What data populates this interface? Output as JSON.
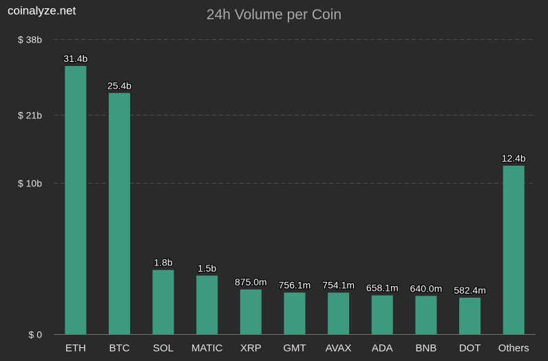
{
  "brand": "coinalyze.net",
  "chart_data": {
    "type": "bar",
    "title": "24h Volume per Coin",
    "xlabel": "",
    "ylabel": "",
    "categories": [
      "ETH",
      "BTC",
      "SOL",
      "MATIC",
      "XRP",
      "GMT",
      "AVAX",
      "ADA",
      "BNB",
      "DOT",
      "Others"
    ],
    "values": [
      31.4,
      25.4,
      1.8,
      1.5,
      0.875,
      0.7561,
      0.7541,
      0.6581,
      0.64,
      0.5824,
      12.4
    ],
    "value_labels": [
      "31.4b",
      "25.4b",
      "1.8b",
      "1.5b",
      "875.0m",
      "756.1m",
      "754.1m",
      "658.1m",
      "640.0m",
      "582.4m",
      "12.4b"
    ],
    "y_ticks": [
      0,
      10,
      21,
      38
    ],
    "y_tick_labels": [
      "$ 0",
      "$ 10b",
      "$ 21b",
      "$ 38b"
    ],
    "y_scale": "sqrt",
    "ylim": [
      0,
      38
    ],
    "grid": true,
    "legend": "none",
    "colors": {
      "background": "#2a2a2b",
      "bar": "#3d9a7f",
      "grid": "#505053",
      "text": "#e0e0e3",
      "title": "#a8a8ab"
    }
  }
}
